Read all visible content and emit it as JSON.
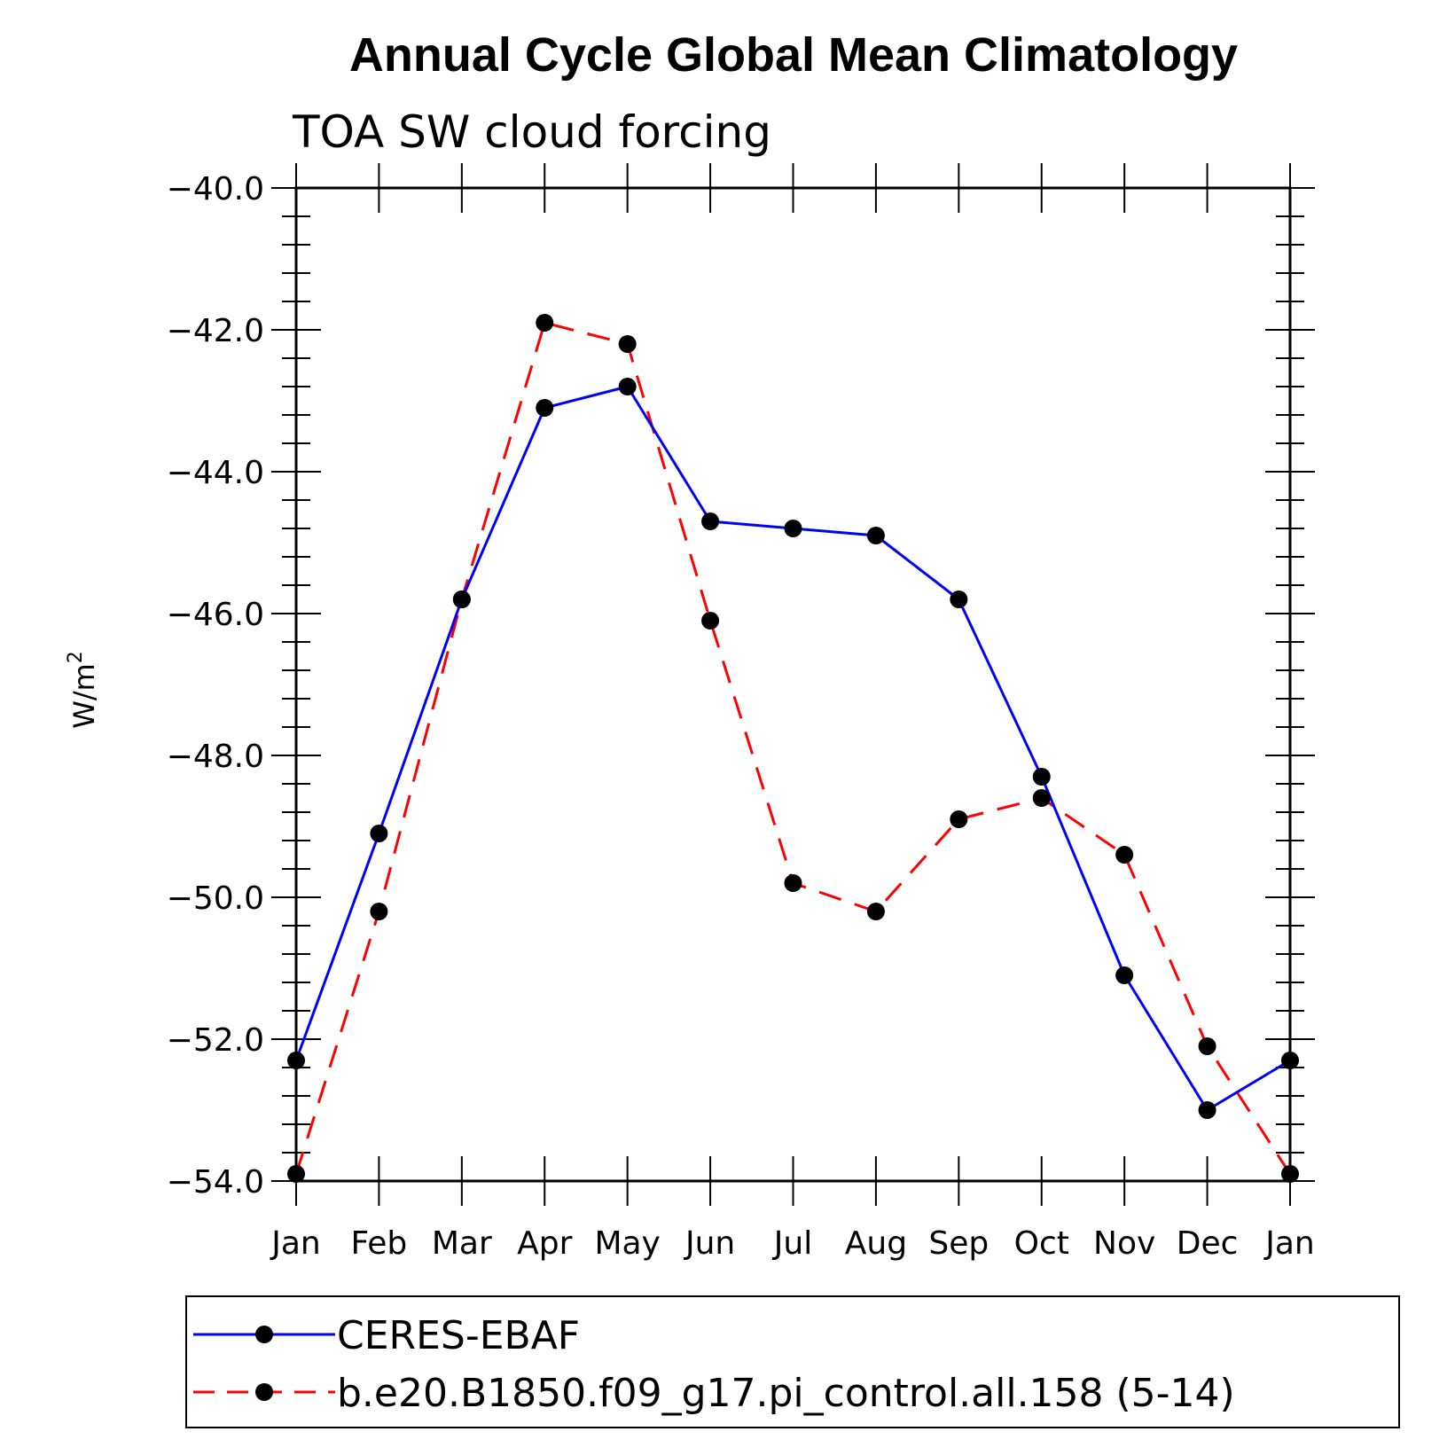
{
  "chart_data": {
    "type": "line",
    "title": "Annual Cycle Global Mean Climatology",
    "subtitle": "TOA SW cloud forcing",
    "xlabel": "",
    "ylabel": "W/m",
    "ylabel_superscript": "2",
    "categories": [
      "Jan",
      "Feb",
      "Mar",
      "Apr",
      "May",
      "Jun",
      "Jul",
      "Aug",
      "Sep",
      "Oct",
      "Nov",
      "Dec",
      "Jan"
    ],
    "ylim": [
      -54.0,
      -40.0
    ],
    "yticks": [
      "-40.0",
      "-42.0",
      "-44.0",
      "-46.0",
      "-48.0",
      "-50.0",
      "-52.0",
      "-54.0"
    ],
    "grid": false,
    "legend_position": "bottom",
    "series": [
      {
        "name": "CERES-EBAF",
        "color": "#0000ff",
        "style": "solid",
        "marker": "filled-circle",
        "values": [
          -52.3,
          -49.1,
          -45.8,
          -43.1,
          -42.8,
          -44.7,
          -44.8,
          -44.9,
          -45.8,
          -48.3,
          -51.1,
          -53.0,
          -52.3
        ]
      },
      {
        "name": "b.e20.B1850.f09_g17.pi_control.all.158 (5-14)",
        "color": "#ff0000",
        "style": "dashed",
        "marker": "filled-circle",
        "values": [
          -53.9,
          -50.2,
          -45.8,
          -41.9,
          -42.2,
          -46.1,
          -49.8,
          -50.2,
          -48.9,
          -48.6,
          -49.4,
          -52.1,
          -53.9
        ]
      }
    ]
  }
}
